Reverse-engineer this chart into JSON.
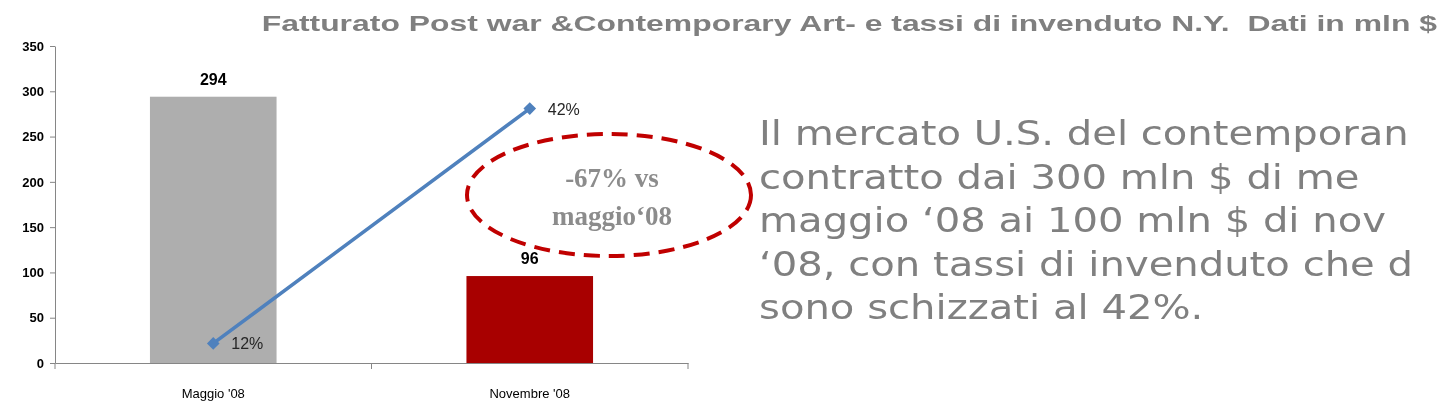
{
  "chart_data": {
    "type": "bar",
    "title": "Fatturato Post war &Contemporary Art- e tassi di invenduto N.Y.  Dati in mln $",
    "categories": [
      "Maggio '08",
      "Novembre '08"
    ],
    "series": [
      {
        "colors": [
          "#aeaeae",
          "#a80000"
        ],
        "values": [
          294,
          96
        ],
        "value_labels": [
          "294",
          "96"
        ]
      },
      {
        "type": "line",
        "color": "#4f81bd",
        "values": [
          12,
          42
        ],
        "axis": "y2",
        "value_labels": [
          "12%",
          "42%"
        ]
      }
    ],
    "ylim": [
      0,
      350
    ],
    "yticks": [
      0,
      50,
      100,
      150,
      200,
      250,
      300,
      350
    ],
    "y2lim": [
      9.5,
      50
    ],
    "marker": "diamond",
    "annotations": [
      "-67% vs\nmaggio‘08",
      "Il mercato U.S. del contemporan\ncontratto dai 300 mln $ di me\nmaggio ‘08 ai 100 mln $ di nov\n‘08, con tassi di invenduto che d\nsono schizzati al 42%."
    ]
  }
}
